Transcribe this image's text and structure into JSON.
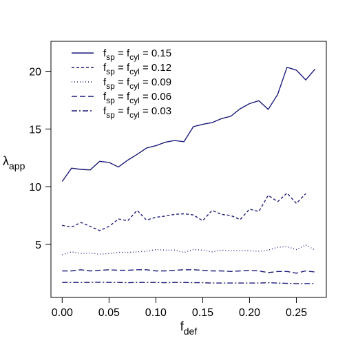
{
  "chart_data": {
    "type": "line",
    "title": "",
    "xlabel": {
      "main": "f",
      "sub": "def"
    },
    "ylabel": {
      "main": "λ",
      "sub": "app"
    },
    "xlim": [
      -0.012,
      0.282
    ],
    "ylim": [
      0.4,
      22.6
    ],
    "xticks": [
      0.0,
      0.05,
      0.1,
      0.15,
      0.2,
      0.25
    ],
    "xtick_labels": [
      "0.00",
      "0.05",
      "0.10",
      "0.15",
      "0.20",
      "0.25"
    ],
    "yticks": [
      5,
      10,
      15,
      20
    ],
    "ytick_labels": [
      "5",
      "10",
      "15",
      "20"
    ],
    "grid": false,
    "legend_position": "top-left",
    "line_color": "#1a1a7a",
    "x": [
      0.0,
      0.01,
      0.02,
      0.03,
      0.04,
      0.05,
      0.06,
      0.07,
      0.08,
      0.09,
      0.1,
      0.11,
      0.12,
      0.13,
      0.14,
      0.15,
      0.16,
      0.17,
      0.18,
      0.19,
      0.2,
      0.21,
      0.22,
      0.23,
      0.24,
      0.25,
      0.26,
      0.27
    ],
    "series": [
      {
        "legend": {
          "a": "f",
          "a_sub": "sp",
          "eq1": " = ",
          "b": "f",
          "b_sub": "cyl",
          "eq2": " = ",
          "value": "0.15"
        },
        "dash": "solid",
        "values": [
          10.45,
          11.6,
          11.5,
          11.45,
          12.2,
          12.1,
          11.7,
          12.3,
          12.8,
          13.35,
          13.55,
          13.85,
          14.0,
          13.9,
          15.2,
          15.4,
          15.55,
          15.9,
          16.1,
          16.75,
          17.2,
          17.45,
          16.7,
          18.0,
          20.35,
          20.1,
          19.25,
          20.2
        ]
      },
      {
        "legend": {
          "a": "f",
          "a_sub": "sp",
          "eq1": " = ",
          "b": "f",
          "b_sub": "cyl",
          "eq2": " = ",
          "value": "0.12"
        },
        "dash": "dashed-short",
        "values": [
          6.65,
          6.5,
          6.9,
          6.55,
          6.2,
          6.55,
          7.2,
          7.05,
          7.95,
          7.1,
          7.35,
          7.45,
          7.6,
          7.65,
          7.55,
          7.05,
          7.95,
          7.6,
          7.5,
          7.15,
          8.05,
          7.85,
          9.25,
          8.7,
          9.45,
          8.55,
          9.4,
          null
        ]
      },
      {
        "legend": {
          "a": "f",
          "a_sub": "sp",
          "eq1": " = ",
          "b": "f",
          "b_sub": "cyl",
          "eq2": " = ",
          "value": "0.09"
        },
        "dash": "dotted",
        "values": [
          4.1,
          4.35,
          4.2,
          4.25,
          4.15,
          4.2,
          4.3,
          4.3,
          4.35,
          4.4,
          4.55,
          4.5,
          4.5,
          4.3,
          4.55,
          4.5,
          4.35,
          4.5,
          4.45,
          4.45,
          4.45,
          4.4,
          4.5,
          4.75,
          4.8,
          4.55,
          4.95,
          4.5
        ]
      },
      {
        "legend": {
          "a": "f",
          "a_sub": "sp",
          "eq1": " = ",
          "b": "f",
          "b_sub": "cyl",
          "eq2": " = ",
          "value": "0.06"
        },
        "dash": "dashed-long",
        "values": [
          2.7,
          2.7,
          2.8,
          2.7,
          2.75,
          2.8,
          2.75,
          2.75,
          2.8,
          2.8,
          2.7,
          2.7,
          2.75,
          2.8,
          2.8,
          2.75,
          2.7,
          2.7,
          2.65,
          2.7,
          2.75,
          2.7,
          2.55,
          2.65,
          2.65,
          2.5,
          2.7,
          2.6
        ]
      },
      {
        "legend": {
          "a": "f",
          "a_sub": "sp",
          "eq1": " = ",
          "b": "f",
          "b_sub": "cyl",
          "eq2": " = ",
          "value": "0.03"
        },
        "dash": "dashdot",
        "values": [
          1.7,
          1.7,
          1.7,
          1.7,
          1.72,
          1.7,
          1.7,
          1.68,
          1.7,
          1.7,
          1.7,
          1.68,
          1.7,
          1.7,
          1.68,
          1.68,
          1.65,
          1.65,
          1.65,
          1.65,
          1.65,
          1.65,
          1.68,
          1.65,
          1.62,
          1.6,
          1.6,
          1.6
        ]
      }
    ]
  }
}
